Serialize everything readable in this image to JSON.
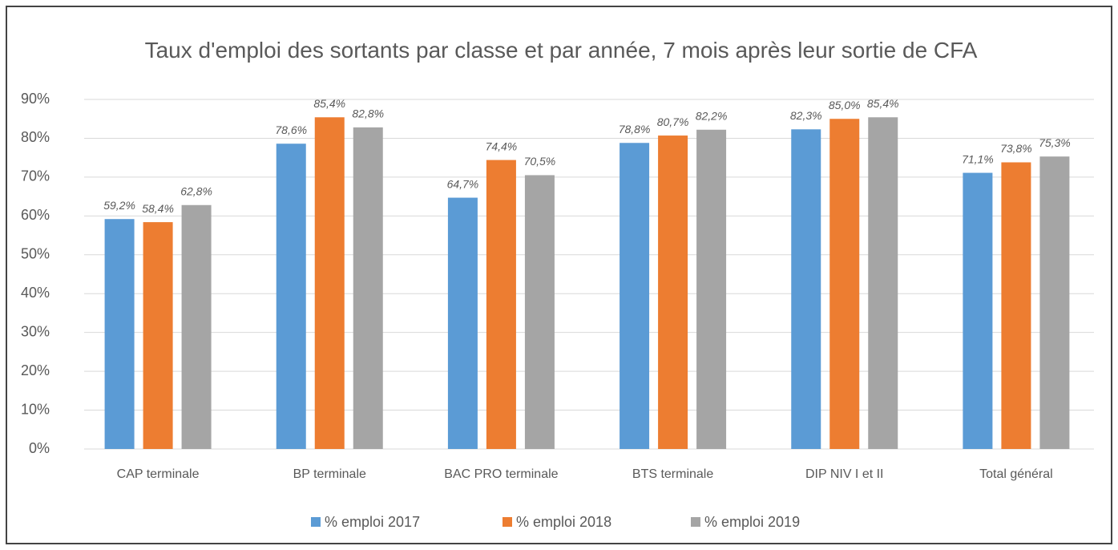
{
  "chart_data": {
    "type": "bar",
    "title": "Taux d'emploi des sortants par classe et par année, 7 mois après leur sortie de CFA",
    "categories": [
      "CAP terminale",
      "BP terminale",
      "BAC PRO terminale",
      "BTS terminale",
      "DIP NIV I et II",
      "Total général"
    ],
    "series": [
      {
        "name": "% emploi 2017",
        "color": "#5b9bd5",
        "values": [
          59.2,
          78.6,
          64.7,
          78.8,
          82.3,
          71.1
        ],
        "value_labels": [
          "59,2%",
          "78,6%",
          "64,7%",
          "78,8%",
          "82,3%",
          "71,1%"
        ]
      },
      {
        "name": "% emploi 2018",
        "color": "#ed7d31",
        "values": [
          58.4,
          85.4,
          74.4,
          80.7,
          85.0,
          73.8
        ],
        "value_labels": [
          "58,4%",
          "85,4%",
          "74,4%",
          "80,7%",
          "85,0%",
          "73,8%"
        ]
      },
      {
        "name": "% emploi 2019",
        "color": "#a5a5a5",
        "values": [
          62.8,
          82.8,
          70.5,
          82.2,
          85.4,
          75.3
        ],
        "value_labels": [
          "62,8%",
          "82,8%",
          "70,5%",
          "82,2%",
          "85,4%",
          "75,3%"
        ]
      }
    ],
    "ylim": [
      0,
      90
    ],
    "yticks": [
      {
        "value": 0,
        "label": "0%"
      },
      {
        "value": 10,
        "label": "10%"
      },
      {
        "value": 20,
        "label": "20%"
      },
      {
        "value": 30,
        "label": "30%"
      },
      {
        "value": 40,
        "label": "40%"
      },
      {
        "value": 50,
        "label": "50%"
      },
      {
        "value": 60,
        "label": "60%"
      },
      {
        "value": 70,
        "label": "70%"
      },
      {
        "value": 80,
        "label": "80%"
      },
      {
        "value": 90,
        "label": "90%"
      }
    ],
    "grid": true,
    "legend": "bottom"
  }
}
